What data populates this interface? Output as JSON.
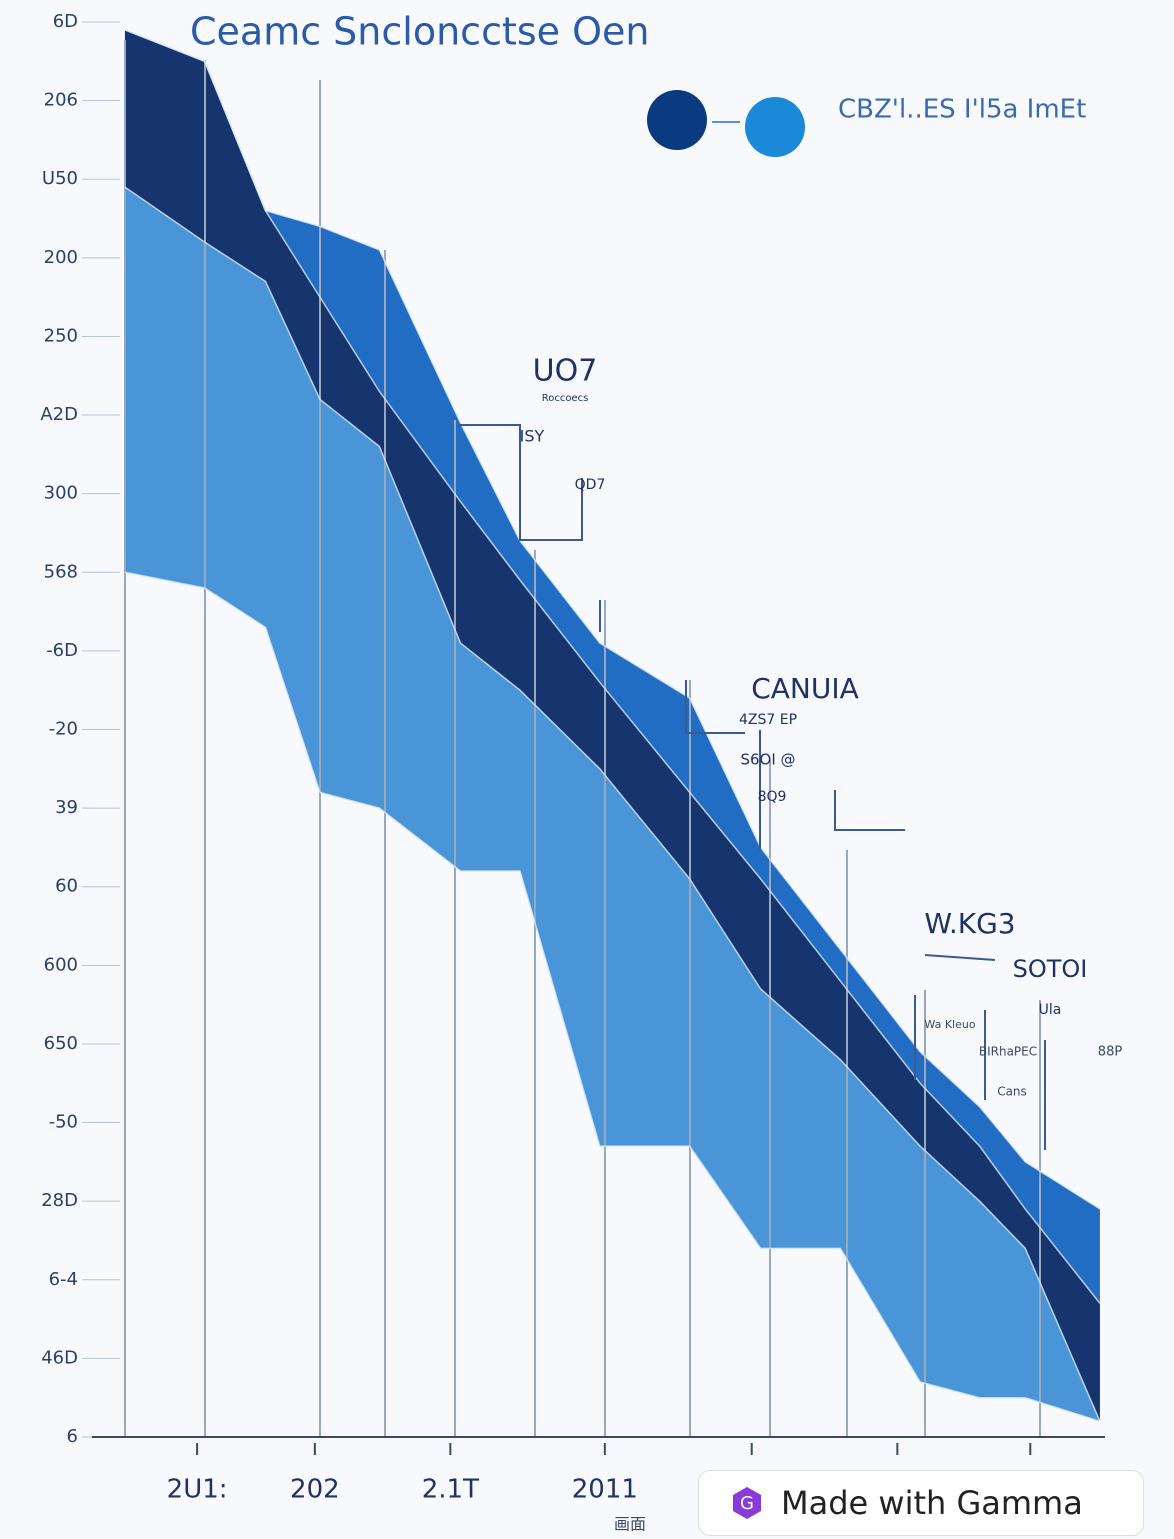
{
  "chart_data": {
    "type": "band",
    "title": "Ceamc Sncloncctse Oen",
    "legend_label": "CBZ'l..ES I'l5a ImEt",
    "x": [
      0.26,
      0.89,
      1.37,
      1.8,
      2.27,
      2.91,
      3.38,
      4.01,
      4.72,
      5.28,
      5.91,
      6.54,
      7.01,
      7.37,
      7.96
    ],
    "series": [
      {
        "color": "#1565c0",
        "values": [
          17.9,
          17.5,
          15.6,
          15.4,
          15.1,
          12.9,
          11.4,
          10.1,
          9.4,
          7.5,
          6.2,
          4.9,
          4.2,
          3.5,
          2.9
        ]
      },
      {
        "color": "#0a2a66",
        "values": [
          17.9,
          17.5,
          15.6,
          14.5,
          13.3,
          11.9,
          10.9,
          9.6,
          8.2,
          7.1,
          5.8,
          4.5,
          3.7,
          2.9,
          1.7
        ]
      },
      {
        "color": "#3f8fd6",
        "values": [
          15.9,
          15.2,
          14.7,
          13.2,
          12.6,
          10.1,
          9.5,
          8.5,
          7.1,
          5.7,
          4.8,
          3.7,
          3.0,
          2.4,
          0.2
        ]
      },
      {
        "color": "#8fc0ea",
        "values": [
          11.0,
          10.8,
          10.3,
          8.2,
          8.0,
          7.2,
          7.2,
          3.7,
          3.7,
          2.4,
          2.4,
          0.7,
          0.5,
          0.5,
          0.2
        ]
      }
    ],
    "xlim": [
      0,
      8
    ],
    "xticks": [
      {
        "value": 0.83,
        "label": "2U1:"
      },
      {
        "value": 1.76,
        "label": "202"
      },
      {
        "value": 2.83,
        "label": "2.1T"
      },
      {
        "value": 4.05,
        "label": "2011"
      },
      {
        "value": 5.21,
        "label": null
      },
      {
        "value": 6.36,
        "label": null
      },
      {
        "value": 7.41,
        "label": null
      }
    ],
    "x_sublabel": "画面",
    "ylim": [
      0,
      18
    ],
    "yticks": [
      {
        "value": 0,
        "label": "6"
      },
      {
        "value": 1,
        "label": "46D"
      },
      {
        "value": 2,
        "label": "6-4"
      },
      {
        "value": 3,
        "label": "28D"
      },
      {
        "value": 4,
        "label": "-50"
      },
      {
        "value": 5,
        "label": "650"
      },
      {
        "value": 6,
        "label": "600"
      },
      {
        "value": 7,
        "label": "60"
      },
      {
        "value": 8,
        "label": "39"
      },
      {
        "value": 9,
        "label": "-20"
      },
      {
        "value": 10,
        "label": "-6D"
      },
      {
        "value": 11,
        "label": "568"
      },
      {
        "value": 12,
        "label": "300"
      },
      {
        "value": 13,
        "label": "A2D"
      },
      {
        "value": 14,
        "label": "250"
      },
      {
        "value": 15,
        "label": "200"
      },
      {
        "value": 16,
        "label": "U50"
      },
      {
        "value": 17,
        "label": "206"
      },
      {
        "value": 18,
        "label": "6D"
      }
    ],
    "annotations": [
      "UO7",
      "Roccoecs",
      "ISY",
      "QD7",
      "CANUIA",
      "4ZS7 EP",
      "S6OI @",
      "8Q9",
      "W.KG3",
      "SOTOI",
      "Wa Kleuo",
      "Ula",
      "BIRhaPEC",
      "88P",
      "Cans"
    ]
  },
  "watermark": "Made with Gamma"
}
